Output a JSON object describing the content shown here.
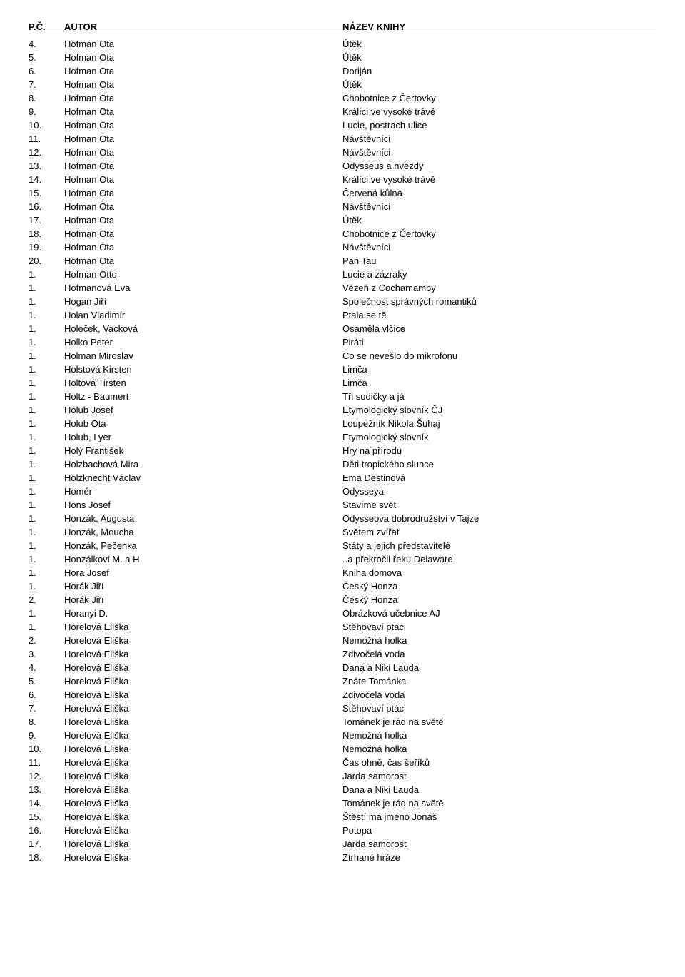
{
  "header": {
    "pc": "P.Č.",
    "author": "AUTOR",
    "title": "NÁZEV KNIHY"
  },
  "rows": [
    {
      "pc": "4.",
      "author": "Hofman Ota",
      "title": "Útěk"
    },
    {
      "pc": "5.",
      "author": "Hofman Ota",
      "title": "Útěk"
    },
    {
      "pc": "6.",
      "author": "Hofman Ota",
      "title": "Doriján"
    },
    {
      "pc": "7.",
      "author": "Hofman Ota",
      "title": "Útěk"
    },
    {
      "pc": "8.",
      "author": "Hofman Ota",
      "title": "Chobotnice z Čertovky"
    },
    {
      "pc": "9.",
      "author": "Hofman Ota",
      "title": "Králíci ve vysoké trávě"
    },
    {
      "pc": "10.",
      "author": "Hofman Ota",
      "title": "Lucie, postrach ulice"
    },
    {
      "pc": "11.",
      "author": "Hofman Ota",
      "title": "Návštěvníci"
    },
    {
      "pc": "12.",
      "author": "Hofman Ota",
      "title": "Návštěvníci"
    },
    {
      "pc": "13.",
      "author": "Hofman Ota",
      "title": "Odysseus a hvězdy"
    },
    {
      "pc": "14.",
      "author": "Hofman Ota",
      "title": "Králíci ve vysoké trávě"
    },
    {
      "pc": "15.",
      "author": "Hofman Ota",
      "title": "Červená kůlna"
    },
    {
      "pc": "16.",
      "author": "Hofman Ota",
      "title": "Návštěvníci"
    },
    {
      "pc": "17.",
      "author": "Hofman Ota",
      "title": "Útěk"
    },
    {
      "pc": "18.",
      "author": "Hofman Ota",
      "title": "Chobotnice z Čertovky"
    },
    {
      "pc": "19.",
      "author": "Hofman Ota",
      "title": "Návštěvníci"
    },
    {
      "pc": "20.",
      "author": "Hofman Ota",
      "title": "Pan Tau"
    },
    {
      "pc": "1.",
      "author": "Hofman Otto",
      "title": "Lucie a zázraky"
    },
    {
      "pc": "1.",
      "author": "Hofmanová Eva",
      "title": "Vězeň z Cochamamby"
    },
    {
      "pc": "1.",
      "author": "Hogan Jiří",
      "title": "Společnost správných romantiků"
    },
    {
      "pc": "1.",
      "author": "Holan Vladimír",
      "title": "Ptala se tě"
    },
    {
      "pc": "1.",
      "author": "Holeček, Vacková",
      "title": "Osamělá vlčice"
    },
    {
      "pc": "1.",
      "author": "Holko Peter",
      "title": "Piráti"
    },
    {
      "pc": "1.",
      "author": "Holman Miroslav",
      "title": "Co se nevešlo do mikrofonu"
    },
    {
      "pc": "1.",
      "author": "Holstová Kirsten",
      "title": "Limča"
    },
    {
      "pc": "1.",
      "author": "Holtová Tirsten",
      "title": "Limča"
    },
    {
      "pc": "1.",
      "author": "Holtz - Baumert",
      "title": "Tři sudičky a já"
    },
    {
      "pc": "1.",
      "author": "Holub Josef",
      "title": "Etymologický slovník ČJ"
    },
    {
      "pc": "1.",
      "author": "Holub Ota",
      "title": "Loupežník Nikola Šuhaj"
    },
    {
      "pc": "1.",
      "author": "Holub, Lyer",
      "title": "Etymologický slovník"
    },
    {
      "pc": "1.",
      "author": "Holý František",
      "title": "Hry na přírodu"
    },
    {
      "pc": "1.",
      "author": "Holzbachová Mira",
      "title": "Děti tropického slunce"
    },
    {
      "pc": "1.",
      "author": "Holzknecht Václav",
      "title": "Ema Destinová"
    },
    {
      "pc": "1.",
      "author": "Homér",
      "title": "Odysseya"
    },
    {
      "pc": "1.",
      "author": "Hons Josef",
      "title": "Stavíme svět"
    },
    {
      "pc": "1.",
      "author": "Honzák, Augusta",
      "title": "Odysseova dobrodružství v Tajze"
    },
    {
      "pc": "1.",
      "author": "Honzák, Moucha",
      "title": "Světem zvířat"
    },
    {
      "pc": "1.",
      "author": "Honzák, Pečenka",
      "title": "Státy a jejich představitelé"
    },
    {
      "pc": "1.",
      "author": "Honzálkovi M. a H",
      "title": "..a překročil řeku Delaware"
    },
    {
      "pc": "1.",
      "author": "Hora Josef",
      "title": "Kniha domova"
    },
    {
      "pc": "1.",
      "author": "Horák Jiří",
      "title": "Český Honza"
    },
    {
      "pc": "2.",
      "author": "Horák Jiří",
      "title": "Český Honza"
    },
    {
      "pc": "1.",
      "author": "Horanyi D.",
      "title": "Obrázková učebnice AJ"
    },
    {
      "pc": "1.",
      "author": "Horelová Eliška",
      "title": "Stěhovaví ptáci"
    },
    {
      "pc": "2.",
      "author": "Horelová Eliška",
      "title": "Nemožná holka"
    },
    {
      "pc": "3.",
      "author": "Horelová Eliška",
      "title": "Zdivočelá voda"
    },
    {
      "pc": "4.",
      "author": "Horelová Eliška",
      "title": "Dana a Niki Lauda"
    },
    {
      "pc": "5.",
      "author": "Horelová Eliška",
      "title": "Znáte Tománka"
    },
    {
      "pc": "6.",
      "author": "Horelová Eliška",
      "title": "Zdivočelá voda"
    },
    {
      "pc": "7.",
      "author": "Horelová Eliška",
      "title": "Stěhovaví ptáci"
    },
    {
      "pc": "8.",
      "author": "Horelová Eliška",
      "title": "Tománek je rád na světě"
    },
    {
      "pc": "9.",
      "author": "Horelová Eliška",
      "title": "Nemožná holka"
    },
    {
      "pc": "10.",
      "author": "Horelová Eliška",
      "title": "Nemožná holka"
    },
    {
      "pc": "11.",
      "author": "Horelová Eliška",
      "title": "Čas ohně, čas šeříků"
    },
    {
      "pc": "12.",
      "author": "Horelová Eliška",
      "title": "Jarda samorost"
    },
    {
      "pc": "13.",
      "author": "Horelová Eliška",
      "title": "Dana   a Niki Lauda"
    },
    {
      "pc": "14.",
      "author": "Horelová Eliška",
      "title": "Tománek je rád na světě"
    },
    {
      "pc": "15.",
      "author": "Horelová Eliška",
      "title": "Štěstí má jméno Jonáš"
    },
    {
      "pc": "16.",
      "author": "Horelová Eliška",
      "title": "Potopa"
    },
    {
      "pc": "17.",
      "author": "Horelová Eliška",
      "title": "Jarda samorost"
    },
    {
      "pc": "18.",
      "author": "Horelová Eliška",
      "title": "Ztrhané hráze"
    }
  ]
}
